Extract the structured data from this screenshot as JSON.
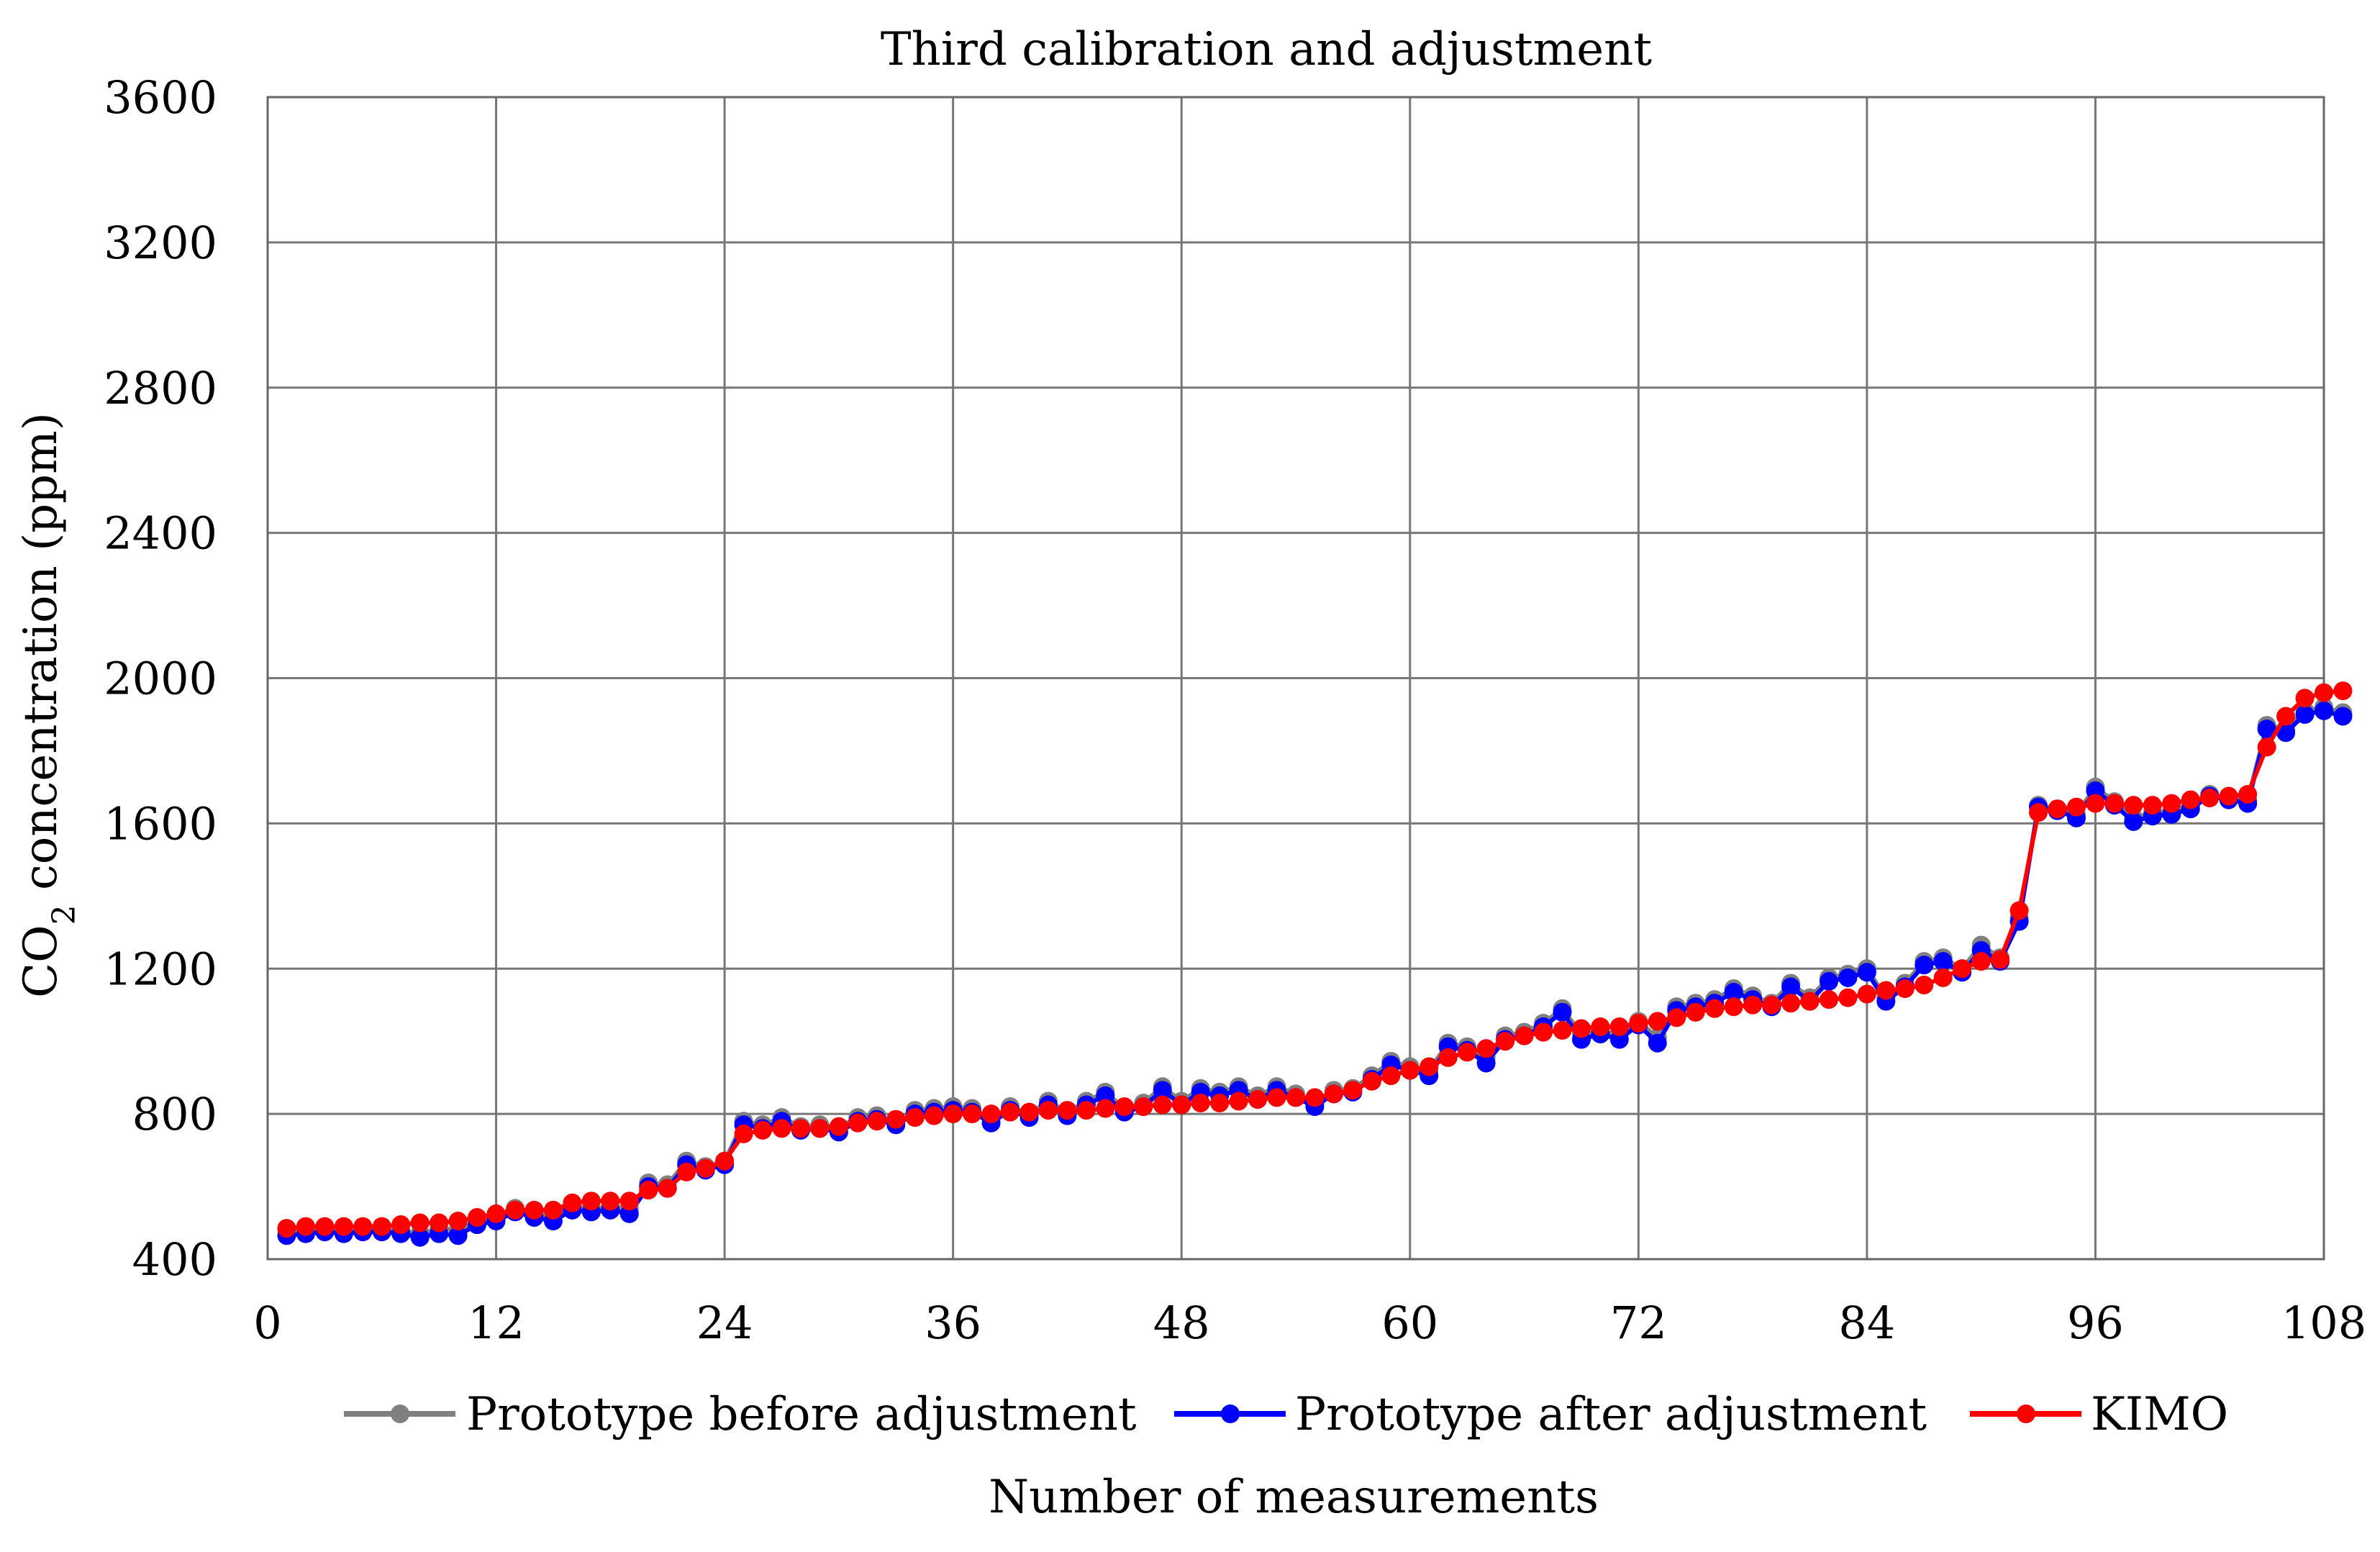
{
  "chart_data": {
    "type": "line",
    "title": "Third calibration and adjustment",
    "xlabel": "Number of measurements",
    "ylabel_main": "CO",
    "ylabel_sub": "2",
    "ylabel_rest": " concentration  (ppm)",
    "xlim": [
      0,
      108
    ],
    "ylim": [
      400,
      3600
    ],
    "xticks": [
      0,
      12,
      24,
      36,
      48,
      60,
      72,
      84,
      96,
      108
    ],
    "yticks": [
      400,
      800,
      1200,
      1600,
      2000,
      2400,
      2800,
      3200,
      3600
    ],
    "grid": true,
    "legend_position": "bottom",
    "series": [
      {
        "name": "Prototype before adjustment",
        "color": "#808080",
        "values": [
          480,
          480,
          485,
          480,
          485,
          480,
          480,
          470,
          485,
          480,
          505,
          520,
          540,
          525,
          520,
          545,
          540,
          545,
          540,
          610,
          605,
          670,
          655,
          670,
          780,
          770,
          790,
          765,
          770,
          765,
          790,
          795,
          780,
          810,
          815,
          820,
          815,
          785,
          820,
          800,
          835,
          805,
          835,
          860,
          815,
          830,
          875,
          835,
          870,
          860,
          875,
          850,
          875,
          855,
          830,
          865,
          870,
          905,
          945,
          930,
          920,
          995,
          985,
          955,
          1015,
          1025,
          1050,
          1090,
          1020,
          1030,
          1020,
          1055,
          1010,
          1095,
          1105,
          1115,
          1145,
          1125,
          1105,
          1160,
          1120,
          1175,
          1185,
          1200,
          1120,
          1160,
          1220,
          1230,
          1200,
          1265,
          1230,
          1340,
          1650,
          1640,
          1625,
          1700,
          1660,
          1615,
          1630,
          1635,
          1650,
          1680,
          1670,
          1665,
          1870,
          1860,
          1910,
          1920,
          1905
        ],
        "render_order": 0
      },
      {
        "name": "Prototype after adjustment",
        "color": "#0000ff",
        "values": [
          465,
          470,
          475,
          470,
          475,
          475,
          470,
          460,
          470,
          465,
          495,
          505,
          530,
          515,
          505,
          535,
          530,
          535,
          525,
          600,
          595,
          660,
          645,
          660,
          770,
          760,
          780,
          755,
          760,
          750,
          780,
          785,
          770,
          800,
          805,
          810,
          805,
          775,
          810,
          790,
          825,
          795,
          825,
          850,
          805,
          820,
          865,
          825,
          860,
          850,
          865,
          840,
          865,
          845,
          820,
          855,
          860,
          895,
          935,
          920,
          905,
          985,
          975,
          940,
          1005,
          1015,
          1040,
          1080,
          1005,
          1020,
          1005,
          1045,
          995,
          1085,
          1095,
          1105,
          1135,
          1115,
          1095,
          1150,
          1110,
          1165,
          1175,
          1190,
          1110,
          1150,
          1210,
          1220,
          1190,
          1250,
          1220,
          1330,
          1645,
          1635,
          1615,
          1690,
          1650,
          1605,
          1620,
          1625,
          1640,
          1675,
          1665,
          1655,
          1860,
          1850,
          1900,
          1910,
          1895
        ],
        "render_order": 1
      },
      {
        "name": "KIMO",
        "color": "#ff0000",
        "values": [
          485,
          490,
          490,
          490,
          490,
          490,
          495,
          500,
          500,
          505,
          515,
          525,
          535,
          535,
          535,
          555,
          560,
          560,
          560,
          590,
          595,
          640,
          650,
          670,
          745,
          755,
          760,
          760,
          760,
          765,
          775,
          780,
          785,
          790,
          795,
          800,
          800,
          800,
          805,
          805,
          810,
          810,
          810,
          815,
          820,
          820,
          825,
          825,
          830,
          830,
          835,
          840,
          845,
          845,
          845,
          855,
          865,
          890,
          905,
          920,
          930,
          955,
          970,
          980,
          1000,
          1015,
          1025,
          1030,
          1035,
          1040,
          1040,
          1050,
          1055,
          1065,
          1080,
          1090,
          1095,
          1100,
          1100,
          1105,
          1110,
          1115,
          1120,
          1130,
          1140,
          1145,
          1155,
          1175,
          1200,
          1220,
          1225,
          1360,
          1630,
          1640,
          1645,
          1655,
          1655,
          1650,
          1650,
          1655,
          1665,
          1670,
          1675,
          1680,
          1810,
          1895,
          1945,
          1960,
          1965
        ],
        "render_order": 2
      }
    ]
  }
}
